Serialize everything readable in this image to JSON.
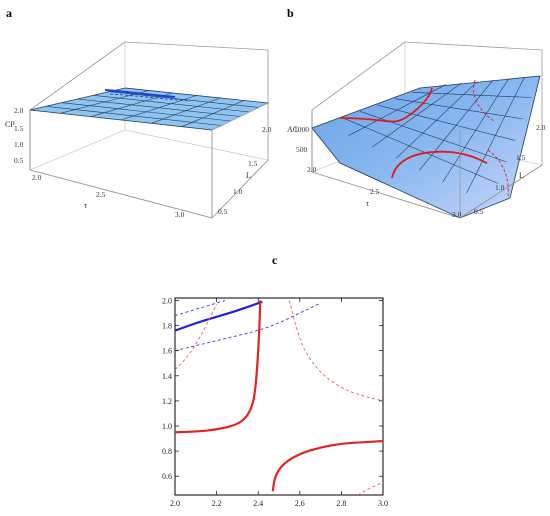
{
  "panels": [
    {
      "label": "a"
    },
    {
      "label": "b"
    },
    {
      "label": "c"
    }
  ],
  "chart_data": [
    {
      "type": "surface3d",
      "panel": "a",
      "zlabel": "CP",
      "xlabel": "τ",
      "ylabel": "L",
      "x_ticks": [
        "2.0",
        "2.5",
        "3.0"
      ],
      "y_ticks": [
        "0.5",
        "1.0",
        "1.5",
        "2.0"
      ],
      "z_ticks": [
        "2.0",
        "1.5",
        "1.0",
        "0.5"
      ],
      "x_range": [
        2.0,
        3.0
      ],
      "y_range": [
        0.5,
        2.0
      ],
      "z_range": [
        0.5,
        2.0
      ],
      "surface_z_approx": [
        [
          1.8,
          1.85
        ],
        [
          1.9,
          1.95
        ]
      ],
      "colors": {
        "surface": "#8fc4f0",
        "mesh": "#1f3a5a",
        "contour": "#1a3fd6"
      }
    },
    {
      "type": "surface3d",
      "panel": "b",
      "zlabel": "AC",
      "xlabel": "τ",
      "ylabel": "L",
      "x_ticks": [
        "2.0",
        "2.5",
        "3.0"
      ],
      "y_ticks": [
        "0.5",
        "1.0",
        "1.5",
        "2.0"
      ],
      "z_ticks": [
        "1000",
        "500"
      ],
      "x_range": [
        2.0,
        3.0
      ],
      "y_range": [
        0.5,
        2.0
      ],
      "colors": {
        "surface": "#7fb0ea",
        "mesh": "#1f3a5a",
        "contour": "#e01a1a"
      }
    },
    {
      "type": "contour",
      "panel": "c",
      "x_ticks": [
        "2.0",
        "2.2",
        "2.4",
        "2.6",
        "2.8",
        "3.0"
      ],
      "y_ticks": [
        "0.6",
        "0.8",
        "1.0",
        "1.2",
        "1.4",
        "1.6",
        "1.8",
        "2.0"
      ],
      "xlim": [
        2.0,
        3.0
      ],
      "ylim": [
        0.45,
        2.02
      ],
      "series": [
        {
          "color": "#1f22e0",
          "style": "solid",
          "points": [
            [
              2.0,
              1.76
            ],
            [
              2.1,
              1.82
            ],
            [
              2.2,
              1.87
            ],
            [
              2.3,
              1.92
            ],
            [
              2.42,
              1.99
            ]
          ]
        },
        {
          "color": "#2a3ef0",
          "style": "dashed",
          "points": [
            [
              2.0,
              1.88
            ],
            [
              2.1,
              1.93
            ],
            [
              2.2,
              1.98
            ],
            [
              2.24,
              2.0
            ]
          ]
        },
        {
          "color": "#2a3ef0",
          "style": "dashed",
          "points": [
            [
              2.0,
              1.6
            ],
            [
              2.1,
              1.64
            ],
            [
              2.2,
              1.68
            ],
            [
              2.3,
              1.72
            ],
            [
              2.4,
              1.76
            ],
            [
              2.5,
              1.82
            ],
            [
              2.6,
              1.9
            ],
            [
              2.7,
              1.98
            ]
          ]
        },
        {
          "color": "#e52222",
          "style": "solid",
          "points": [
            [
              2.0,
              0.95
            ],
            [
              2.1,
              0.955
            ],
            [
              2.2,
              0.97
            ],
            [
              2.3,
              1.01
            ],
            [
              2.35,
              1.08
            ],
            [
              2.38,
              1.2
            ],
            [
              2.395,
              1.45
            ],
            [
              2.405,
              1.75
            ],
            [
              2.41,
              2.0
            ]
          ]
        },
        {
          "color": "#e52222",
          "style": "solid",
          "points": [
            [
              2.47,
              0.48
            ],
            [
              2.48,
              0.6
            ],
            [
              2.52,
              0.7
            ],
            [
              2.6,
              0.78
            ],
            [
              2.7,
              0.83
            ],
            [
              2.8,
              0.86
            ],
            [
              2.9,
              0.87
            ],
            [
              3.0,
              0.88
            ]
          ]
        },
        {
          "color": "#ef5a5a",
          "style": "dashed",
          "points": [
            [
              2.0,
              1.45
            ],
            [
              2.05,
              1.53
            ],
            [
              2.1,
              1.65
            ],
            [
              2.15,
              1.8
            ],
            [
              2.2,
              1.97
            ]
          ]
        },
        {
          "color": "#ef5a5a",
          "style": "dashed",
          "points": [
            [
              2.55,
              2.0
            ],
            [
              2.58,
              1.8
            ],
            [
              2.62,
              1.6
            ],
            [
              2.7,
              1.42
            ],
            [
              2.8,
              1.3
            ],
            [
              2.9,
              1.24
            ],
            [
              3.0,
              1.2
            ]
          ]
        },
        {
          "color": "#ef5a5a",
          "style": "dashed",
          "points": [
            [
              2.88,
              0.45
            ],
            [
              2.93,
              0.5
            ],
            [
              2.97,
              0.53
            ],
            [
              3.0,
              0.55
            ]
          ]
        }
      ]
    }
  ]
}
